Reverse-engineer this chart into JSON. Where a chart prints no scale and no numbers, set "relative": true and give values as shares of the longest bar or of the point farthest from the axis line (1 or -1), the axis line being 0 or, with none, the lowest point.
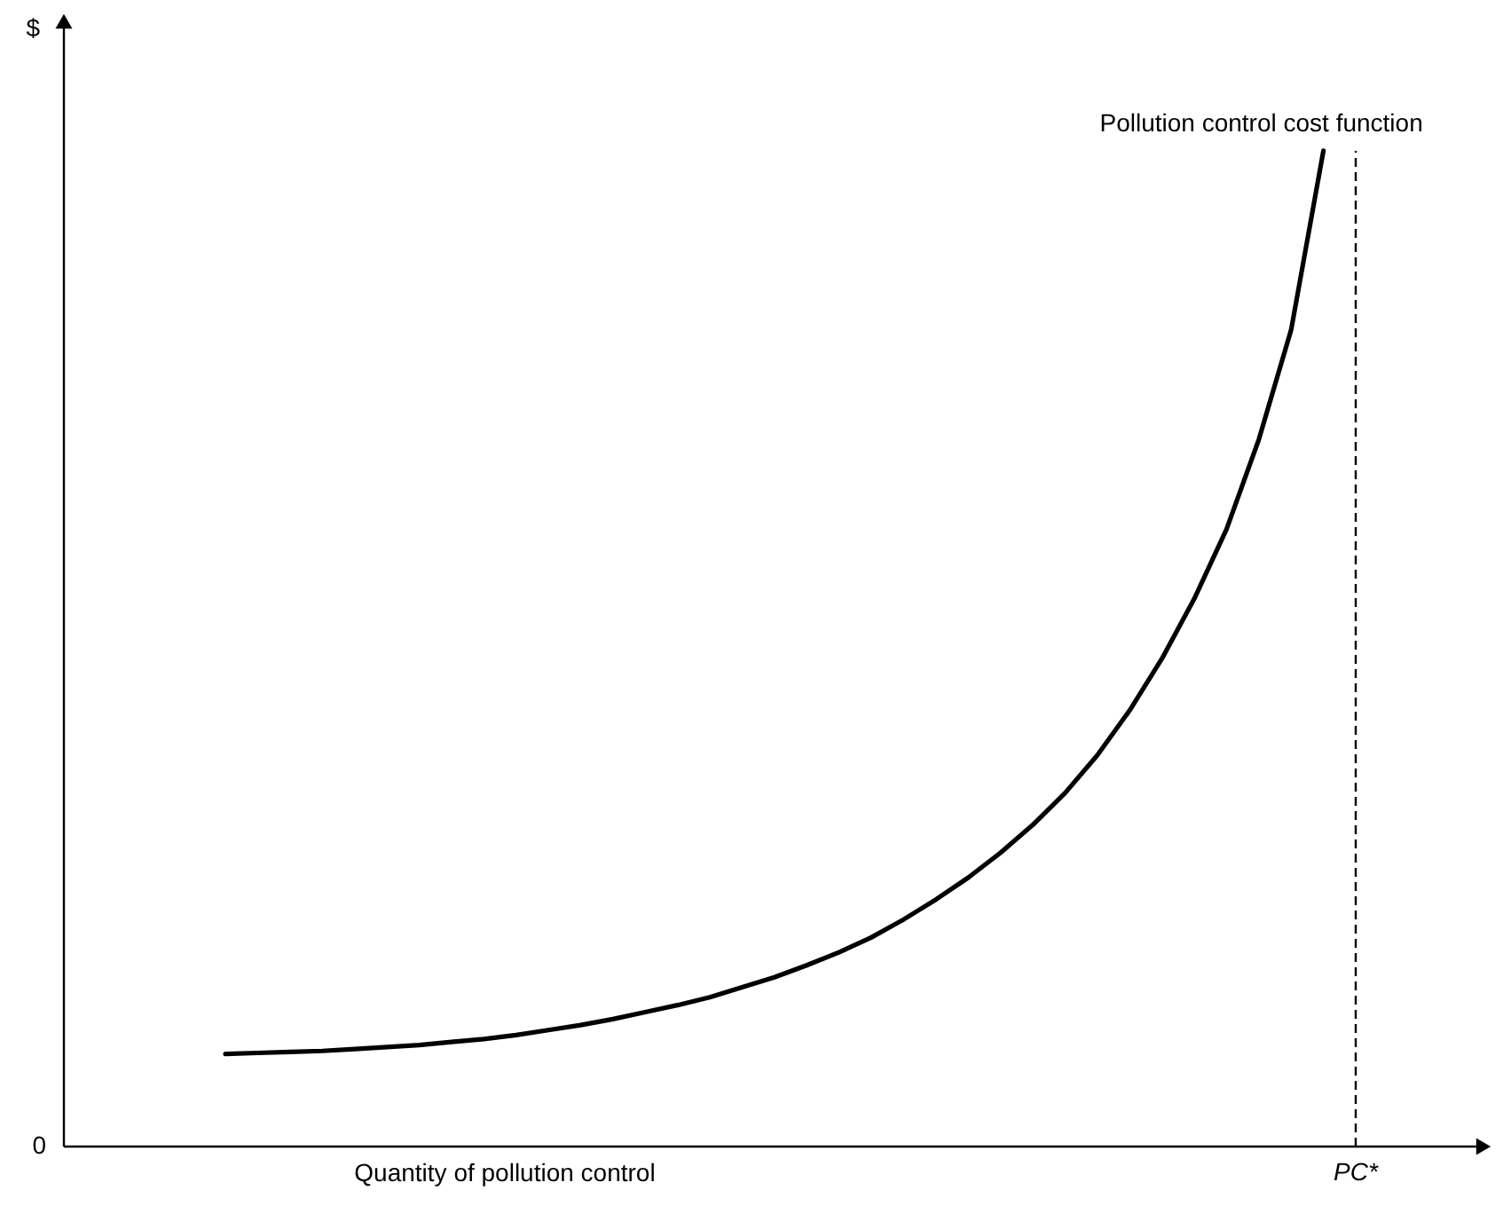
{
  "chart_data": {
    "type": "line",
    "relative": true,
    "xlabel": "Quantity of pollution control",
    "ylabel": "$",
    "categories": [
      null,
      null,
      null,
      null,
      null,
      null,
      null,
      null,
      null,
      null,
      null,
      null,
      null,
      null,
      null,
      null,
      null,
      null,
      null,
      null,
      null,
      null,
      null,
      null,
      null,
      null,
      null,
      null,
      null,
      null,
      null,
      null,
      null,
      null,
      null,
      null,
      null,
      null,
      null,
      null,
      null
    ],
    "series": [
      {
        "name": "Pollution control cost function",
        "color": "#000000",
        "values": [
          null,
          null,
          null,
          null,
          null,
          0.093,
          0.094,
          0.095,
          0.096,
          0.098,
          0.1,
          0.102,
          0.105,
          0.108,
          0.112,
          0.117,
          0.122,
          0.128,
          0.135,
          0.142,
          0.15,
          0.16,
          0.17,
          0.182,
          0.195,
          0.21,
          0.228,
          0.248,
          0.27,
          0.295,
          0.323,
          0.355,
          0.393,
          0.438,
          0.49,
          0.55,
          0.62,
          0.71,
          0.82,
          1.0,
          null
        ]
      }
    ],
    "ref_lines": [
      {
        "axis": "x",
        "label": "PC*",
        "line_style": "dashed"
      }
    ],
    "annotations": [
      "0"
    ],
    "grid": false,
    "marker": "none",
    "line_style": "solid"
  }
}
